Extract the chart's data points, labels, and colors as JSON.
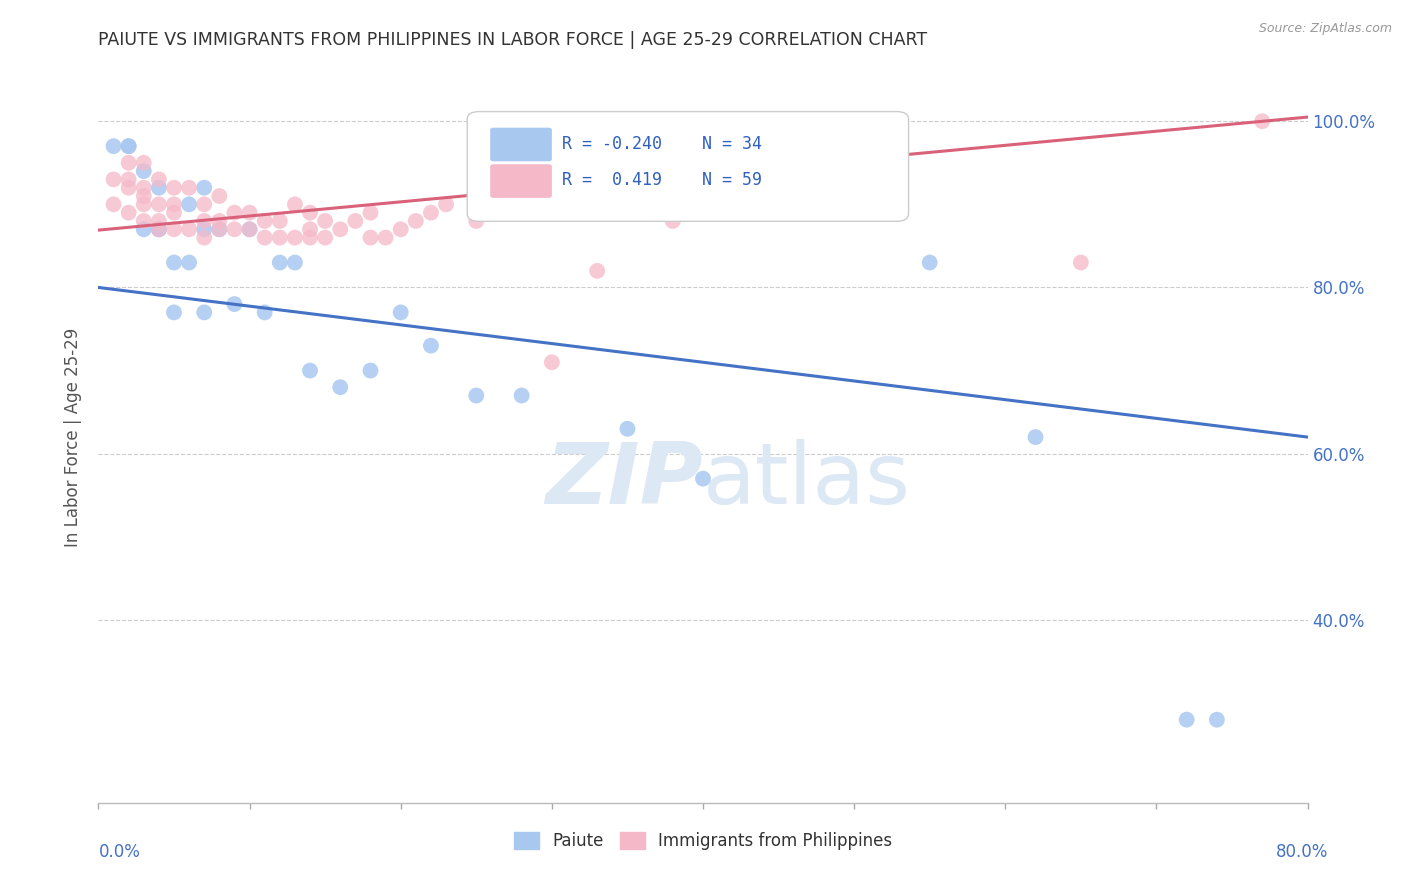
{
  "title": "PAIUTE VS IMMIGRANTS FROM PHILIPPINES IN LABOR FORCE | AGE 25-29 CORRELATION CHART",
  "source": "Source: ZipAtlas.com",
  "ylabel": "In Labor Force | Age 25-29",
  "R_blue": -0.24,
  "N_blue": 34,
  "R_pink": 0.419,
  "N_pink": 59,
  "blue_color": "#a8c8f0",
  "pink_color": "#f5b8c8",
  "blue_line_color": "#4472c4",
  "pink_line_color": "#d9627a",
  "axis_label_color": "#4472c4",
  "watermark_color": "#dde8f5",
  "xlim": [
    0.0,
    0.8
  ],
  "ylim": [
    0.18,
    1.06
  ],
  "ytick_vals": [
    0.4,
    0.6,
    0.8,
    1.0
  ],
  "ytick_labels": [
    "40.0%",
    "60.0%",
    "80.0%",
    "100.0%"
  ],
  "legend_blue_label": "Paiute",
  "legend_pink_label": "Immigrants from Philippines",
  "blue_scatter_x": [
    0.01,
    0.02,
    0.02,
    0.03,
    0.03,
    0.04,
    0.04,
    0.04,
    0.05,
    0.05,
    0.06,
    0.06,
    0.07,
    0.07,
    0.07,
    0.08,
    0.09,
    0.1,
    0.11,
    0.12,
    0.13,
    0.14,
    0.16,
    0.18,
    0.2,
    0.22,
    0.25,
    0.28,
    0.35,
    0.4,
    0.55,
    0.62,
    0.72,
    0.74
  ],
  "blue_scatter_y": [
    0.97,
    0.97,
    0.97,
    0.87,
    0.94,
    0.87,
    0.87,
    0.92,
    0.77,
    0.83,
    0.83,
    0.9,
    0.77,
    0.87,
    0.92,
    0.87,
    0.78,
    0.87,
    0.77,
    0.83,
    0.83,
    0.7,
    0.68,
    0.7,
    0.77,
    0.73,
    0.67,
    0.67,
    0.63,
    0.57,
    0.83,
    0.62,
    0.28,
    0.28
  ],
  "pink_scatter_x": [
    0.01,
    0.01,
    0.02,
    0.02,
    0.02,
    0.02,
    0.03,
    0.03,
    0.03,
    0.03,
    0.03,
    0.04,
    0.04,
    0.04,
    0.04,
    0.05,
    0.05,
    0.05,
    0.05,
    0.06,
    0.06,
    0.07,
    0.07,
    0.07,
    0.08,
    0.08,
    0.08,
    0.09,
    0.09,
    0.1,
    0.1,
    0.11,
    0.11,
    0.12,
    0.12,
    0.13,
    0.13,
    0.14,
    0.14,
    0.14,
    0.15,
    0.15,
    0.16,
    0.17,
    0.18,
    0.18,
    0.19,
    0.2,
    0.21,
    0.22,
    0.23,
    0.25,
    0.27,
    0.3,
    0.33,
    0.38,
    0.4,
    0.65,
    0.77
  ],
  "pink_scatter_y": [
    0.9,
    0.93,
    0.89,
    0.92,
    0.93,
    0.95,
    0.88,
    0.9,
    0.91,
    0.92,
    0.95,
    0.87,
    0.88,
    0.9,
    0.93,
    0.87,
    0.89,
    0.9,
    0.92,
    0.87,
    0.92,
    0.86,
    0.88,
    0.9,
    0.87,
    0.88,
    0.91,
    0.87,
    0.89,
    0.87,
    0.89,
    0.86,
    0.88,
    0.86,
    0.88,
    0.86,
    0.9,
    0.86,
    0.87,
    0.89,
    0.86,
    0.88,
    0.87,
    0.88,
    0.86,
    0.89,
    0.86,
    0.87,
    0.88,
    0.89,
    0.9,
    0.88,
    0.9,
    0.71,
    0.82,
    0.88,
    0.93,
    0.83,
    1.0
  ]
}
